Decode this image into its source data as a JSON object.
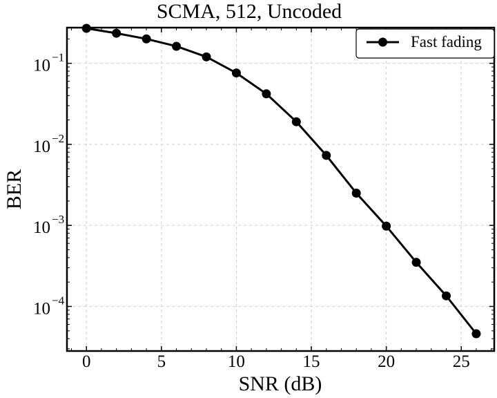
{
  "chart_data": {
    "type": "line",
    "title": "SCMA, 512, Uncoded",
    "xlabel": "SNR (dB)",
    "ylabel": "BER",
    "xlim": [
      -1.3,
      27.2
    ],
    "ylim_log10": [
      -4.55,
      -0.56
    ],
    "yscale": "log",
    "x_ticks": [
      0,
      5,
      10,
      15,
      20,
      25
    ],
    "y_ticks": [
      {
        "base": "10",
        "exp": "−1",
        "log10": -1
      },
      {
        "base": "10",
        "exp": "−2",
        "log10": -2
      },
      {
        "base": "10",
        "exp": "−3",
        "log10": -3
      },
      {
        "base": "10",
        "exp": "−4",
        "log10": -4
      }
    ],
    "grid": true,
    "legend_position": "top-right",
    "series": [
      {
        "name": "Fast fading",
        "color": "#000000",
        "marker": "circle",
        "x": [
          0,
          2,
          4,
          6,
          8,
          10,
          12,
          14,
          16,
          18,
          20,
          22,
          24,
          26
        ],
        "y": [
          0.27,
          0.235,
          0.2,
          0.162,
          0.12,
          0.076,
          0.042,
          0.019,
          0.0073,
          0.0025,
          0.00098,
          0.00035,
          0.000135,
          4.6e-05
        ]
      }
    ]
  }
}
